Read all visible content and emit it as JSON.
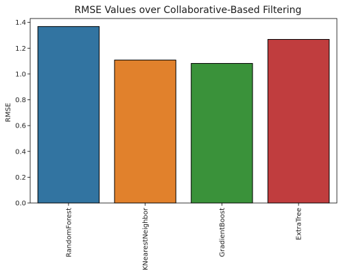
{
  "chart_data": {
    "type": "bar",
    "title": "RMSE Values over Collaborative-Based Filtering",
    "xlabel": "",
    "ylabel": "RMSE",
    "categories": [
      "RandomForest",
      "KNearestNeighbor",
      "GradientBoost",
      "ExtraTree"
    ],
    "values": [
      1.368,
      1.108,
      1.082,
      1.268
    ],
    "colors": [
      "#3274a1",
      "#e1812c",
      "#3a923a",
      "#c03d3e"
    ],
    "ylim": [
      0,
      1.43
    ],
    "yticks": [
      "0.0",
      "0.2",
      "0.4",
      "0.6",
      "0.8",
      "1.0",
      "1.2",
      "1.4"
    ],
    "grid": false
  }
}
